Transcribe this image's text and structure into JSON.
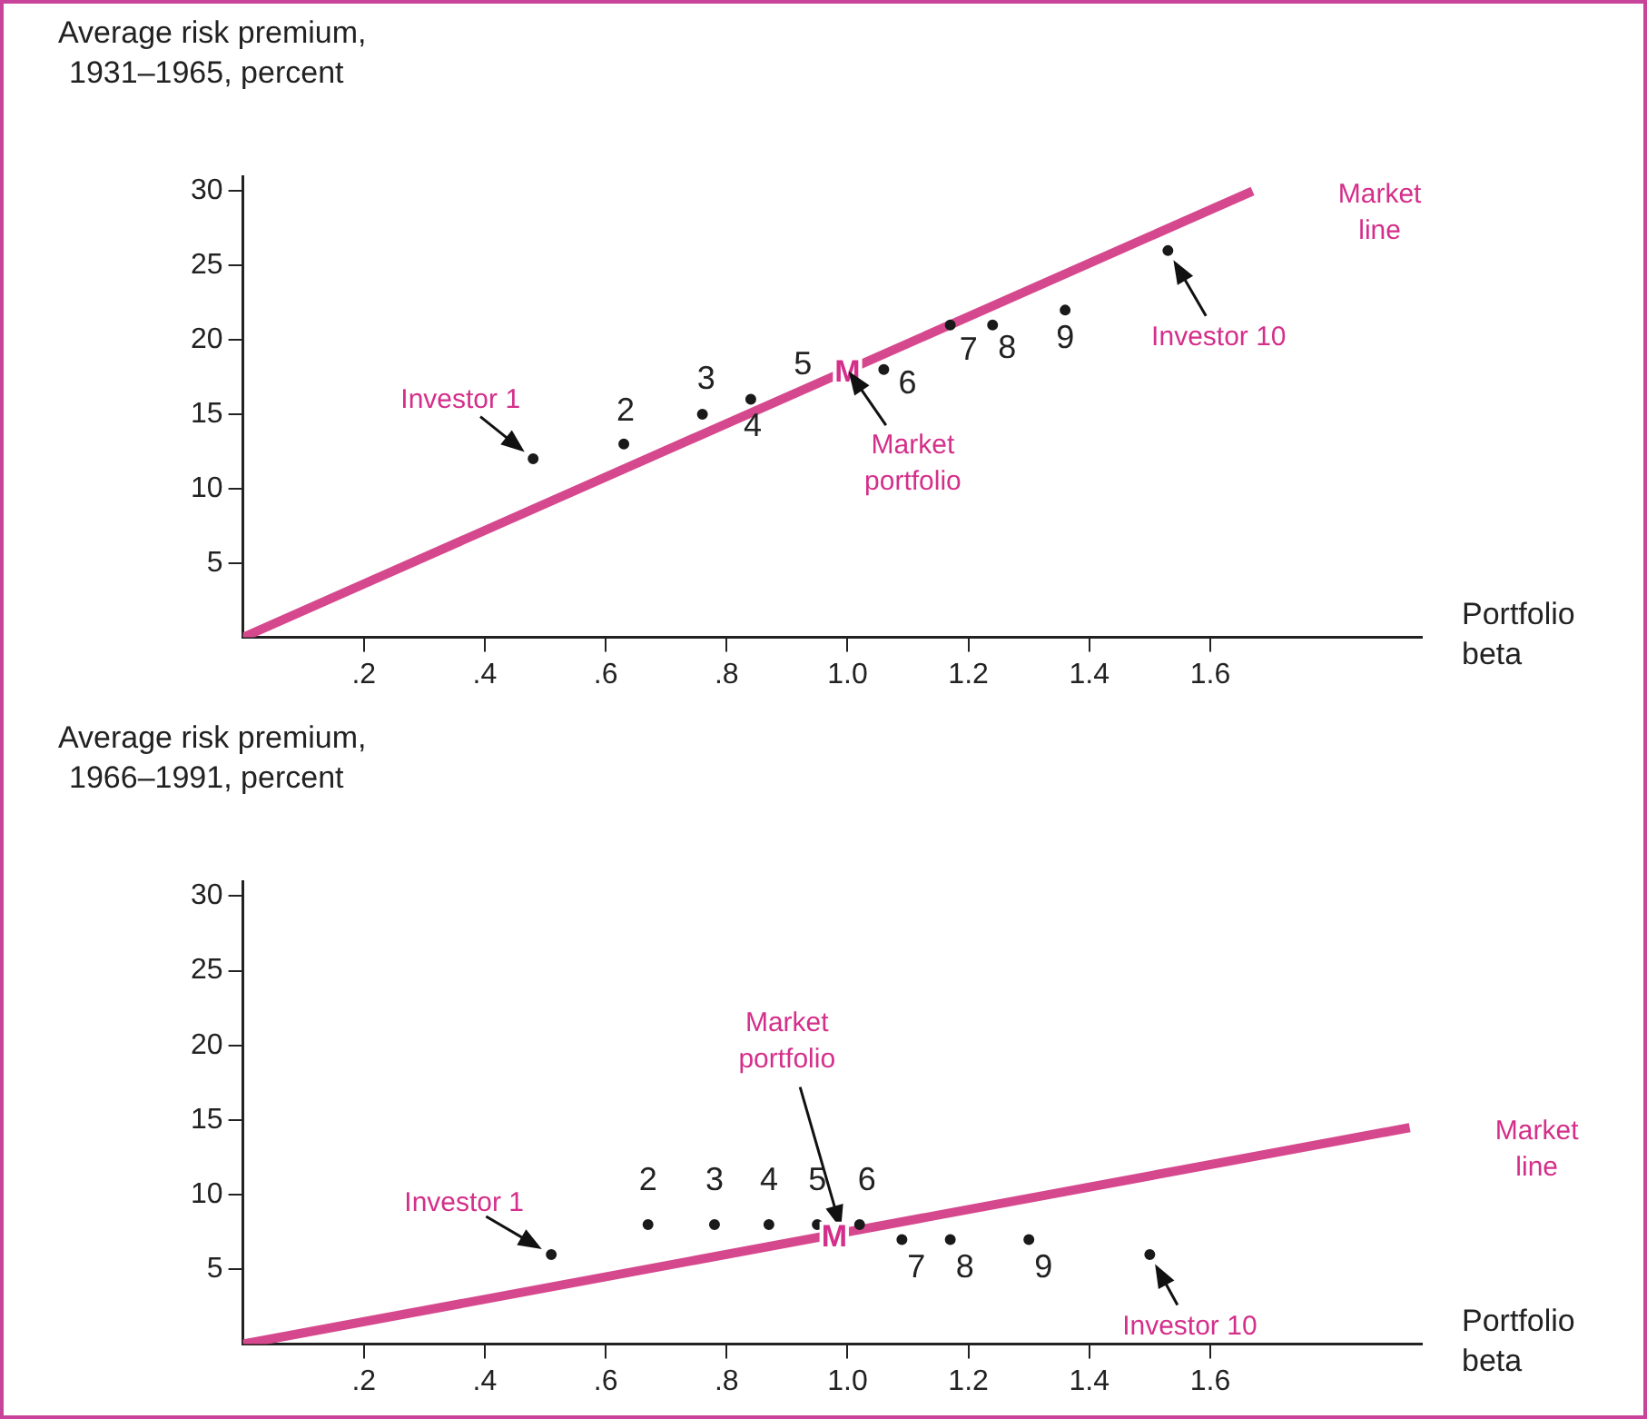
{
  "chart_data": [
    {
      "type": "scatter",
      "xlabel": "Portfolio\nbeta",
      "ylabel": "Average risk premium,\n1931–1965, percent",
      "xlim": [
        0,
        1.95
      ],
      "ylim": [
        0,
        31
      ],
      "xticks": [
        {
          "value": 0.2,
          "label": ".2"
        },
        {
          "value": 0.4,
          "label": ".4"
        },
        {
          "value": 0.6,
          "label": ".6"
        },
        {
          "value": 0.8,
          "label": ".8"
        },
        {
          "value": 1.0,
          "label": "1.0"
        },
        1.2,
        1.4,
        1.6
      ],
      "yticks": [
        5,
        10,
        15,
        20,
        25,
        30
      ],
      "grid": false,
      "legend": false,
      "series": [
        {
          "type": "line",
          "name": "Market line",
          "color": "#d6488e",
          "marker": "none",
          "x": [
            0,
            1.67
          ],
          "values": [
            0,
            30
          ]
        },
        {
          "type": "scatter",
          "color": "#1a1a1a",
          "marker": "circle",
          "x": [
            0.48,
            0.63,
            0.76,
            0.84,
            1.06,
            1.17,
            1.24,
            1.36,
            1.53
          ],
          "values": [
            12,
            13,
            15,
            16,
            18,
            21,
            21,
            22,
            26
          ]
        }
      ],
      "annotations": [
        {
          "text": "Investor 1",
          "x": 0.48,
          "y": 12
        },
        {
          "text": "2",
          "x": 0.63,
          "y": 13
        },
        {
          "text": "3",
          "x": 0.76,
          "y": 15
        },
        {
          "text": "4",
          "x": 0.84,
          "y": 16
        },
        "5",
        {
          "text": "M",
          "x": 1.0,
          "y": 18
        },
        {
          "text": "Market\nportfolio",
          "x": 1.0,
          "y": 18
        },
        {
          "text": "6",
          "x": 1.06,
          "y": 18
        },
        {
          "text": "7",
          "x": 1.17,
          "y": 21
        },
        {
          "text": "8",
          "x": 1.24,
          "y": 21
        },
        {
          "text": "9",
          "x": 1.36,
          "y": 22
        },
        {
          "text": "Investor 10",
          "x": 1.53,
          "y": 26
        }
      ]
    },
    {
      "type": "scatter",
      "xlabel": "Portfolio\nbeta",
      "ylabel": "Average risk premium,\n1966–1991, percent",
      "xlim": [
        0,
        1.95
      ],
      "ylim": [
        0,
        31
      ],
      "xticks": [
        {
          "value": 0.2,
          "label": ".2"
        },
        {
          "value": 0.4,
          "label": ".4"
        },
        {
          "value": 0.6,
          "label": ".6"
        },
        {
          "value": 0.8,
          "label": ".8"
        },
        {
          "value": 1.0,
          "label": "1.0"
        },
        1.2,
        1.4,
        1.6
      ],
      "yticks": [
        5,
        10,
        15,
        20,
        25,
        30
      ],
      "grid": false,
      "legend": false,
      "series": [
        {
          "type": "line",
          "name": "Market line",
          "color": "#d6488e",
          "marker": "none",
          "x": [
            0,
            1.93
          ],
          "values": [
            0,
            14.5
          ]
        },
        {
          "type": "scatter",
          "color": "#1a1a1a",
          "marker": "circle",
          "x": [
            0.51,
            0.67,
            0.78,
            0.87,
            0.95,
            1.02,
            1.09,
            1.17,
            1.3,
            1.5
          ],
          "values": [
            6,
            8,
            8,
            8,
            8,
            8,
            7,
            7,
            7,
            6
          ]
        }
      ],
      "annotations": [
        {
          "text": "Investor 1",
          "x": 0.51,
          "y": 6
        },
        {
          "text": "2",
          "x": 0.67,
          "y": 8
        },
        {
          "text": "3",
          "x": 0.78,
          "y": 8
        },
        {
          "text": "4",
          "x": 0.87,
          "y": 8
        },
        {
          "text": "5",
          "x": 0.95,
          "y": 8
        },
        {
          "text": "Market\nportfolio",
          "x": 0.99,
          "y": 7.6
        },
        {
          "text": "M",
          "x": 0.99,
          "y": 7.6
        },
        {
          "text": "6",
          "x": 1.02,
          "y": 8
        },
        {
          "text": "7",
          "x": 1.09,
          "y": 7
        },
        {
          "text": "8",
          "x": 1.17,
          "y": 7
        },
        {
          "text": "9",
          "x": 1.3,
          "y": 7
        },
        {
          "text": "Investor 10",
          "x": 1.5,
          "y": 6
        }
      ]
    }
  ]
}
